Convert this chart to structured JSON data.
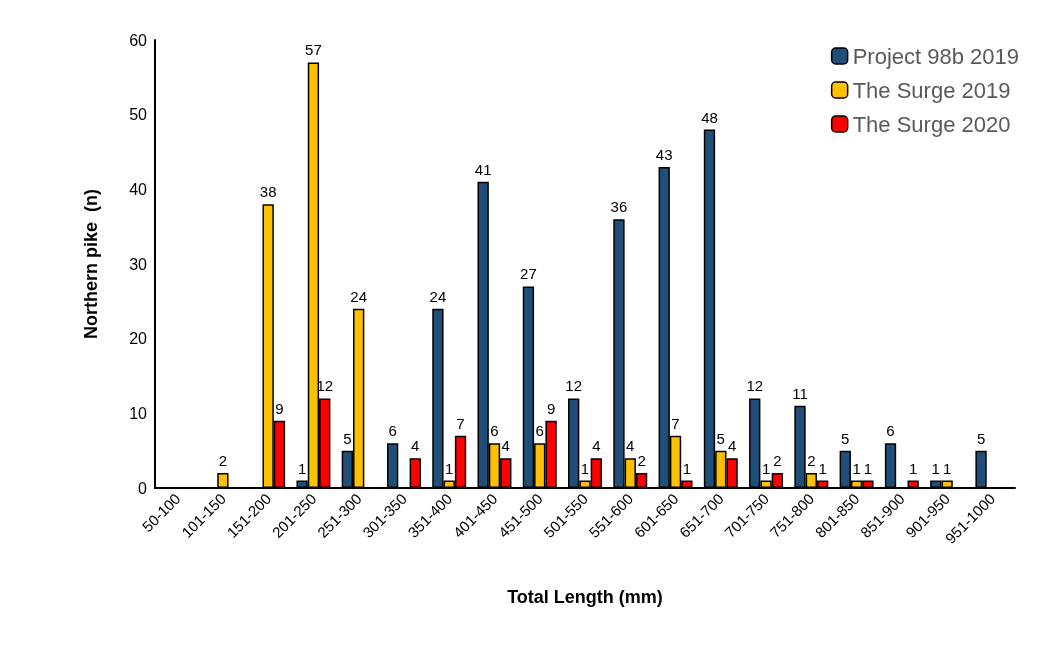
{
  "chart_data": {
    "type": "bar",
    "xlabel": "Total Length (mm)",
    "ylabel": "Northern pike  (n)",
    "categories": [
      "50-100",
      "101-150",
      "151-200",
      "201-250",
      "251-300",
      "301-350",
      "351-400",
      "401-450",
      "451-500",
      "501-550",
      "551-600",
      "601-650",
      "651-700",
      "701-750",
      "751-800",
      "801-850",
      "851-900",
      "901-950",
      "951-1000"
    ],
    "series": [
      {
        "name": "Project 98b 2019",
        "color": "#1f4e79",
        "values": [
          null,
          null,
          null,
          1,
          5,
          6,
          24,
          41,
          27,
          12,
          36,
          43,
          48,
          12,
          11,
          5,
          6,
          1,
          5
        ]
      },
      {
        "name": "The Surge 2019",
        "color": "#ffc000",
        "values": [
          null,
          2,
          38,
          57,
          24,
          null,
          1,
          6,
          6,
          1,
          4,
          7,
          5,
          1,
          2,
          1,
          null,
          1,
          null
        ]
      },
      {
        "name": "The Surge 2020",
        "color": "#ff0000",
        "values": [
          null,
          null,
          9,
          12,
          null,
          4,
          7,
          4,
          9,
          4,
          2,
          1,
          4,
          2,
          1,
          1,
          1,
          null,
          null
        ]
      }
    ],
    "ylim": [
      0,
      60
    ],
    "yticks": [
      0,
      10,
      20,
      30,
      40,
      50,
      60
    ],
    "grid": false,
    "legend": "top right",
    "data_labels": true
  }
}
